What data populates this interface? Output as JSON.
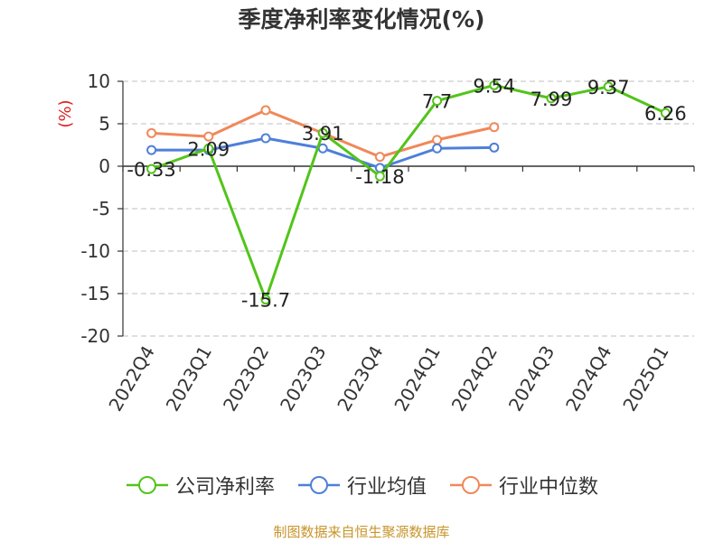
{
  "chart_data": {
    "type": "line",
    "title": "季度净利率变化情况(%)",
    "ylabel": "(%)",
    "xlabel": "",
    "categories": [
      "2022Q4",
      "2023Q1",
      "2023Q2",
      "2023Q3",
      "2023Q4",
      "2024Q1",
      "2024Q2",
      "2024Q3",
      "2024Q4",
      "2025Q1"
    ],
    "ylim": [
      -20,
      10
    ],
    "yticks": [
      10,
      5,
      0,
      -5,
      -10,
      -15,
      -20
    ],
    "grid": true,
    "legend_position": "bottom",
    "series": [
      {
        "name": "公司净利率",
        "color": "#52c41a",
        "values": [
          -0.33,
          2.09,
          -15.7,
          3.91,
          -1.18,
          7.7,
          9.54,
          7.99,
          9.37,
          6.26
        ],
        "data_labels": [
          "-0.33",
          "2.09",
          "-15.7",
          "3.91",
          "-1.18",
          "7.7",
          "9.54",
          "7.99",
          "9.37",
          "6.26"
        ]
      },
      {
        "name": "行业均值",
        "color": "#4e7fd9",
        "values": [
          1.9,
          1.9,
          3.3,
          2.1,
          -0.2,
          2.1,
          2.2,
          null,
          null,
          null
        ]
      },
      {
        "name": "行业中位数",
        "color": "#f0885a",
        "values": [
          3.9,
          3.5,
          6.6,
          3.9,
          1.1,
          3.1,
          4.6,
          null,
          null,
          null
        ]
      }
    ]
  },
  "source": "制图数据来自恒生聚源数据库"
}
